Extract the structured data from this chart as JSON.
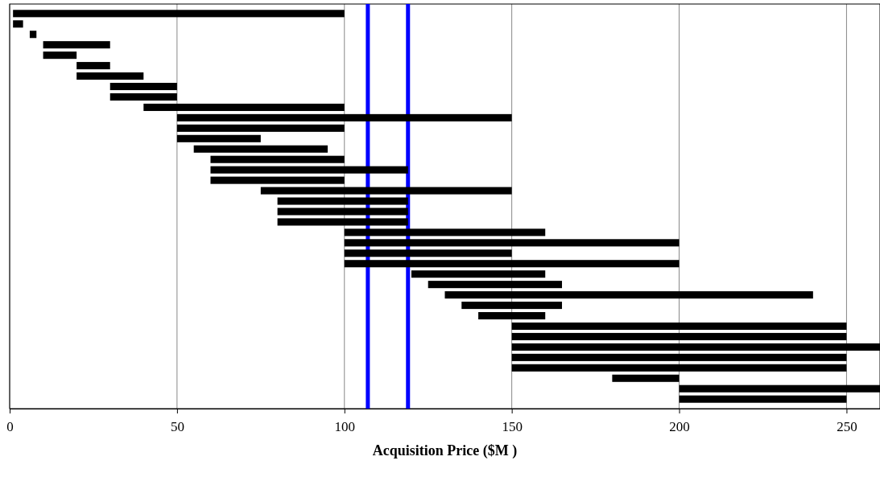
{
  "chart_data": {
    "type": "bar",
    "orientation": "horizontal",
    "xlabel": "Acquisition Price ($M )",
    "categories": [
      null,
      null,
      null,
      null,
      null,
      null,
      null,
      null,
      null,
      null,
      null,
      null,
      null,
      null,
      null,
      null,
      null,
      null,
      null,
      null,
      null,
      null,
      null,
      null,
      null,
      null,
      null,
      null,
      null,
      null,
      null,
      null,
      null,
      null,
      null,
      null,
      null,
      null
    ],
    "base": [
      1,
      1,
      6,
      10,
      10,
      20,
      20,
      30,
      30,
      40,
      50,
      50,
      50,
      55,
      60,
      60,
      60,
      75,
      80,
      80,
      80,
      100,
      100,
      100,
      100,
      120,
      125,
      130,
      135,
      140,
      150,
      150,
      150,
      150,
      150,
      180,
      200,
      200
    ],
    "values": [
      99,
      3,
      2,
      20,
      10,
      10,
      20,
      20,
      20,
      60,
      100,
      50,
      25,
      40,
      40,
      59,
      40,
      75,
      39,
      39,
      39,
      60,
      100,
      50,
      100,
      40,
      40,
      110,
      30,
      20,
      100,
      100,
      110,
      100,
      100,
      20,
      60,
      50
    ],
    "color": "#000000",
    "xlim": [
      0,
      260
    ],
    "xticks": [
      0,
      50,
      100,
      150,
      200,
      250
    ],
    "grid": "x",
    "tick_labels": "x",
    "ref_lines": [
      {
        "axis": "x",
        "value": 107,
        "color": "#0000ff"
      },
      {
        "axis": "x",
        "value": 119,
        "color": "#0000ff"
      }
    ]
  }
}
